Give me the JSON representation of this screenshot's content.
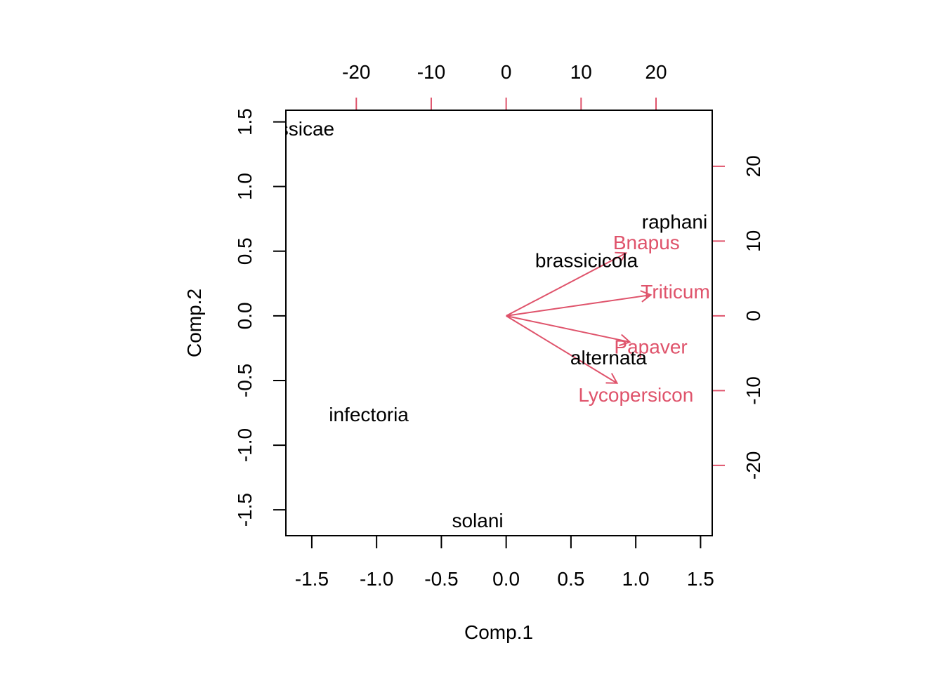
{
  "chart_data": {
    "type": "scatter",
    "subtype": "biplot",
    "xlabel": "Comp.1",
    "ylabel": "Comp.2",
    "xlim": [
      -1.7,
      1.59
    ],
    "ylim": [
      -1.7,
      1.59
    ],
    "x_ticks": [
      -1.5,
      -1.0,
      -0.5,
      0.0,
      0.5,
      1.0,
      1.5
    ],
    "x_tick_labels": [
      "-1.5",
      "-1.0",
      "-0.5",
      "0.0",
      "0.5",
      "1.0",
      "1.5"
    ],
    "y_ticks": [
      -1.5,
      -1.0,
      -0.5,
      0.0,
      0.5,
      1.0,
      1.5
    ],
    "y_tick_labels": [
      "-1.5",
      "-1.0",
      "-0.5",
      "0.0",
      "0.5",
      "1.0",
      "1.5"
    ],
    "top_ticks": [
      -20,
      -10,
      0,
      10,
      20
    ],
    "top_tick_labels": [
      "-20",
      "-10",
      "0",
      "10",
      "20"
    ],
    "right_ticks": [
      -20,
      -10,
      0,
      10,
      20
    ],
    "right_tick_labels": [
      "-20",
      "-10",
      "0",
      "10",
      "20"
    ],
    "loading_lim": [
      -29.4,
      27.5
    ],
    "points": [
      {
        "label": "brassicae",
        "x": -1.65,
        "y": 1.45
      },
      {
        "label": "raphani",
        "x": 1.3,
        "y": 0.73
      },
      {
        "label": "brassicicola",
        "x": 0.62,
        "y": 0.43
      },
      {
        "label": "alternata",
        "x": 0.79,
        "y": -0.32
      },
      {
        "label": "infectoria",
        "x": -1.06,
        "y": -0.76
      },
      {
        "label": "solani",
        "x": -0.22,
        "y": -1.58
      }
    ],
    "loadings": [
      {
        "label": "Bnapus",
        "x": 16.0,
        "y": 8.4
      },
      {
        "label": "Triticum",
        "x": 19.3,
        "y": 2.8
      },
      {
        "label": "Papaver",
        "x": 16.5,
        "y": -3.5
      },
      {
        "label": "Lycopersicon",
        "x": 14.8,
        "y": -9.0
      }
    ],
    "colors": {
      "points": "#000000",
      "loadings": "#DF536B",
      "axes": "#000000"
    }
  }
}
